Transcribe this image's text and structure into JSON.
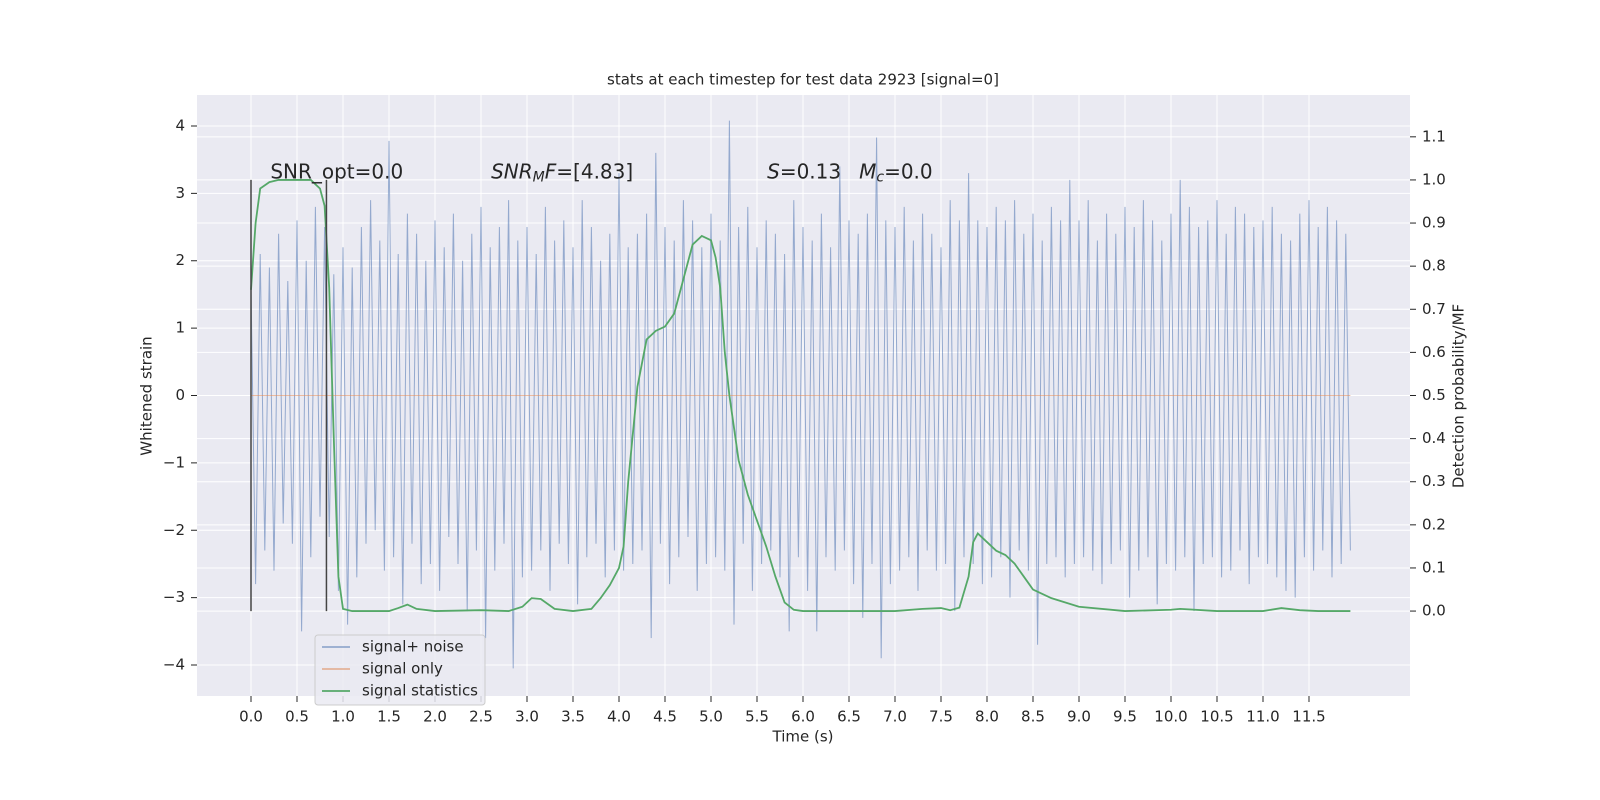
{
  "chart_data": {
    "type": "line",
    "title": "stats at each timestep for test data 2923 [signal=0]",
    "x_label": "Time (s)",
    "y_label": "Whitened strain",
    "y2_label": "Detection probability/MF",
    "xlim": [
      -0.587,
      12.598
    ],
    "ylim": [
      -4.46,
      4.46
    ],
    "y2lim": [
      -0.197,
      1.197
    ],
    "grid": true,
    "xticks": [
      {
        "value": 0,
        "label": "0.0"
      },
      0.5,
      {
        "value": 1,
        "label": "1.0"
      },
      1.5,
      {
        "value": 2,
        "label": "2.0"
      },
      2.5,
      {
        "value": 3,
        "label": "3.0"
      },
      3.5,
      {
        "value": 4,
        "label": "4.0"
      },
      4.5,
      {
        "value": 5,
        "label": "5.0"
      },
      5.5,
      {
        "value": 6,
        "label": "6.0"
      },
      6.5,
      {
        "value": 7,
        "label": "7.0"
      },
      7.5,
      {
        "value": 8,
        "label": "8.0"
      },
      8.5,
      {
        "value": 9,
        "label": "9.0"
      },
      9.5,
      {
        "value": 10,
        "label": "10.0"
      },
      10.5,
      {
        "value": 11,
        "label": "11.0"
      },
      11.5
    ],
    "yticks": [
      {
        "value": -4,
        "label": "−4"
      },
      {
        "value": -3,
        "label": "−3"
      },
      {
        "value": -2,
        "label": "−2"
      },
      {
        "value": -1,
        "label": "−1"
      },
      0,
      1,
      2,
      3,
      4
    ],
    "y2ticks": [
      {
        "value": 0,
        "label": "0.0"
      },
      0.1,
      0.2,
      0.3,
      0.4,
      0.5,
      0.6,
      0.7,
      0.8,
      0.9,
      {
        "value": 1,
        "label": "1.0"
      },
      1.1
    ],
    "legend": "lower left",
    "series": [
      {
        "name": "signal+ noise",
        "color": "#4c72b0",
        "alpha": 0.55,
        "x": [
          0,
          0.05,
          0.1,
          0.15,
          0.2,
          0.25,
          0.3,
          0.35,
          0.4,
          0.45,
          0.5,
          0.55,
          0.6,
          0.65,
          0.7,
          0.75,
          0.8,
          0.85,
          0.9,
          0.95,
          1,
          1.05,
          1.1,
          1.15,
          1.2,
          1.25,
          1.3,
          1.35,
          1.4,
          1.45,
          1.5,
          1.55,
          1.6,
          1.65,
          1.7,
          1.75,
          1.8,
          1.85,
          1.9,
          1.95,
          2,
          2.05,
          2.1,
          2.15,
          2.2,
          2.25,
          2.3,
          2.35,
          2.4,
          2.45,
          2.5,
          2.55,
          2.6,
          2.65,
          2.7,
          2.75,
          2.8,
          2.85,
          2.9,
          2.95,
          3,
          3.05,
          3.1,
          3.15,
          3.2,
          3.25,
          3.3,
          3.35,
          3.4,
          3.45,
          3.5,
          3.55,
          3.6,
          3.65,
          3.7,
          3.75,
          3.8,
          3.85,
          3.9,
          3.95,
          4,
          4.05,
          4.1,
          4.15,
          4.2,
          4.25,
          4.3,
          4.35,
          4.4,
          4.45,
          4.5,
          4.55,
          4.6,
          4.65,
          4.7,
          4.75,
          4.8,
          4.85,
          4.9,
          4.95,
          5,
          5.05,
          5.1,
          5.15,
          5.2,
          5.25,
          5.3,
          5.35,
          5.4,
          5.45,
          5.5,
          5.55,
          5.6,
          5.65,
          5.7,
          5.75,
          5.8,
          5.85,
          5.9,
          5.95,
          6,
          6.05,
          6.1,
          6.15,
          6.2,
          6.25,
          6.3,
          6.35,
          6.4,
          6.45,
          6.5,
          6.55,
          6.6,
          6.65,
          6.7,
          6.75,
          6.8,
          6.85,
          6.9,
          6.95,
          7,
          7.05,
          7.1,
          7.15,
          7.2,
          7.25,
          7.3,
          7.35,
          7.4,
          7.45,
          7.5,
          7.55,
          7.6,
          7.65,
          7.7,
          7.75,
          7.8,
          7.85,
          7.9,
          7.95,
          8,
          8.05,
          8.1,
          8.15,
          8.2,
          8.25,
          8.3,
          8.35,
          8.4,
          8.45,
          8.5,
          8.55,
          8.6,
          8.65,
          8.7,
          8.75,
          8.8,
          8.85,
          8.9,
          8.95,
          9,
          9.05,
          9.1,
          9.15,
          9.2,
          9.25,
          9.3,
          9.35,
          9.4,
          9.45,
          9.5,
          9.55,
          9.6,
          9.65,
          9.7,
          9.75,
          9.8,
          9.85,
          9.9,
          9.95,
          10,
          10.05,
          10.1,
          10.15,
          10.2,
          10.25,
          10.3,
          10.35,
          10.4,
          10.45,
          10.5,
          10.55,
          10.6,
          10.65,
          10.7,
          10.75,
          10.8,
          10.85,
          10.9,
          10.95,
          11,
          11.05,
          11.1,
          11.15,
          11.2,
          11.25,
          11.3,
          11.35,
          11.4,
          11.45,
          11.5,
          11.55,
          11.6,
          11.65,
          11.7,
          11.75,
          11.8,
          11.85,
          11.9,
          11.95
        ],
        "values": [
          1.6,
          -2.8,
          2.1,
          -2.3,
          1.9,
          -2.6,
          2.4,
          -1.9,
          1.7,
          -2.2,
          2.6,
          -3.5,
          2.0,
          -2.4,
          2.8,
          -1.8,
          2.5,
          -2.1,
          1.8,
          -2.9,
          2.2,
          -3.4,
          1.9,
          -2.7,
          2.5,
          -2.2,
          2.9,
          -2.0,
          2.3,
          -2.6,
          3.78,
          -2.4,
          2.1,
          -3.1,
          2.7,
          -2.2,
          2.4,
          -2.8,
          2.0,
          -2.5,
          2.6,
          -2.9,
          2.2,
          -2.1,
          2.7,
          -2.5,
          2.0,
          -3.2,
          2.4,
          -2.3,
          2.8,
          -3.6,
          2.2,
          -2.6,
          2.5,
          -2.2,
          2.9,
          -4.05,
          2.3,
          -2.7,
          2.5,
          -2.6,
          2.1,
          -2.3,
          2.8,
          -2.9,
          2.3,
          -2.2,
          2.6,
          -2.5,
          2.2,
          -3.1,
          2.9,
          -2.4,
          2.5,
          -2.2,
          2.0,
          -2.7,
          2.4,
          -2.3,
          3.3,
          -2.6,
          2.2,
          -2.5,
          2.4,
          -2.3,
          2.7,
          -3.6,
          3.6,
          -2.2,
          2.5,
          -2.8,
          2.3,
          -2.4,
          2.9,
          -2.1,
          2.6,
          -2.9,
          2.2,
          -2.5,
          2.7,
          -2.4,
          2.3,
          -2.6,
          4.08,
          -3.4,
          2.5,
          -2.2,
          2.8,
          -2.9,
          2.2,
          -2.5,
          2.6,
          -2.3,
          2.4,
          -2.7,
          2.1,
          -3.5,
          2.9,
          -2.4,
          2.5,
          -2.9,
          2.3,
          -3.5,
          2.7,
          -2.4,
          2.2,
          -2.6,
          3.4,
          -2.3,
          2.6,
          -2.8,
          2.4,
          -3.3,
          2.7,
          -2.5,
          3.83,
          -3.9,
          2.6,
          -2.8,
          2.5,
          -2.6,
          2.8,
          -2.4,
          2.3,
          -2.9,
          2.7,
          -2.3,
          2.4,
          -2.6,
          2.2,
          -2.5,
          2.9,
          -3.2,
          2.6,
          -2.4,
          3.3,
          -2.5,
          2.6,
          -2.8,
          2.5,
          -2.7,
          2.8,
          -2.4,
          2.6,
          -3.0,
          2.9,
          -2.3,
          2.4,
          -2.6,
          2.7,
          -3.7,
          2.3,
          -2.5,
          2.8,
          -2.4,
          2.6,
          -2.7,
          3.2,
          -2.5,
          2.6,
          -2.4,
          2.9,
          -2.6,
          2.3,
          -2.8,
          2.7,
          -2.5,
          2.4,
          -2.3,
          2.8,
          -3.0,
          2.5,
          -2.6,
          2.9,
          -2.4,
          2.6,
          -3.1,
          2.3,
          -2.5,
          2.7,
          -2.6,
          3.2,
          -2.4,
          2.8,
          -3.2,
          2.5,
          -2.5,
          2.6,
          -2.4,
          2.9,
          -2.7,
          2.4,
          -2.6,
          2.8,
          -2.3,
          2.7,
          -2.8,
          2.5,
          -2.4,
          2.6,
          -2.5,
          2.8,
          -2.7,
          2.4,
          -2.9,
          2.3,
          -3.0,
          2.7,
          -2.4,
          2.9,
          -2.6,
          2.5,
          -2.3,
          2.8,
          -2.7,
          2.6,
          -2.5,
          2.4,
          -2.3
        ]
      },
      {
        "name": "signal only",
        "color": "#dd8452",
        "alpha": 0.55,
        "x": [
          0,
          11.95
        ],
        "values": [
          0,
          0
        ]
      },
      {
        "name": "signal statistics",
        "color": "#55a868",
        "alpha": 1,
        "axis": "y2",
        "x": [
          0,
          0.05,
          0.1,
          0.2,
          0.3,
          0.5,
          0.65,
          0.75,
          0.8,
          0.85,
          0.9,
          0.95,
          1.0,
          1.1,
          1.5,
          1.6,
          1.7,
          1.8,
          2.0,
          2.5,
          2.8,
          2.95,
          3.05,
          3.15,
          3.3,
          3.5,
          3.7,
          3.8,
          3.9,
          4.0,
          4.05,
          4.1,
          4.2,
          4.3,
          4.4,
          4.5,
          4.6,
          4.7,
          4.8,
          4.9,
          5.0,
          5.05,
          5.1,
          5.15,
          5.2,
          5.3,
          5.4,
          5.5,
          5.6,
          5.7,
          5.8,
          5.9,
          6.0,
          7.0,
          7.3,
          7.5,
          7.6,
          7.7,
          7.8,
          7.85,
          7.9,
          8.0,
          8.1,
          8.2,
          8.3,
          8.4,
          8.5,
          8.7,
          9.0,
          9.5,
          10.0,
          10.1,
          10.5,
          11.0,
          11.2,
          11.4,
          11.6,
          11.95
        ],
        "values": [
          0.745,
          0.9,
          0.98,
          0.995,
          1.0,
          1.0,
          1.0,
          0.98,
          0.94,
          0.75,
          0.4,
          0.08,
          0.005,
          0.0,
          0.0,
          0.007,
          0.015,
          0.005,
          0.0,
          0.002,
          0.0,
          0.01,
          0.03,
          0.028,
          0.005,
          0.0,
          0.005,
          0.03,
          0.06,
          0.1,
          0.15,
          0.3,
          0.52,
          0.63,
          0.65,
          0.66,
          0.69,
          0.77,
          0.85,
          0.87,
          0.86,
          0.82,
          0.75,
          0.6,
          0.5,
          0.35,
          0.27,
          0.21,
          0.15,
          0.08,
          0.02,
          0.003,
          0.0,
          0.0,
          0.005,
          0.007,
          0.002,
          0.008,
          0.08,
          0.16,
          0.18,
          0.16,
          0.14,
          0.13,
          0.11,
          0.08,
          0.05,
          0.03,
          0.01,
          0.0,
          0.003,
          0.005,
          0.0,
          0.0,
          0.007,
          0.002,
          0.0,
          0.0
        ]
      }
    ],
    "vlines": {
      "color": "#444444",
      "lines": [
        {
          "x": 0,
          "ymin": -3.2,
          "ymax": 3.2
        },
        {
          "x": 0.82,
          "ymin": -3.2,
          "ymax": 3.2
        }
      ]
    },
    "annotations": [
      {
        "x": 0.21,
        "y": 3.31,
        "parts": [
          {
            "text": "SNR_opt=0.0"
          }
        ]
      },
      {
        "x": 2.61,
        "y": 3.31,
        "parts": [
          {
            "text": "SNR",
            "style": "italic"
          },
          {
            "text": "M",
            "style": "italic-sub"
          },
          {
            "text": "F",
            "style": "italic"
          },
          {
            "text": "=[4.83]"
          }
        ]
      },
      {
        "x": 5.61,
        "y": 3.31,
        "parts": [
          {
            "text": "S",
            "style": "italic"
          },
          {
            "text": "=0.13"
          }
        ]
      },
      {
        "x": 6.61,
        "y": 3.31,
        "parts": [
          {
            "text": "M",
            "style": "italic"
          },
          {
            "text": "c",
            "style": "italic-sub"
          },
          {
            "text": "=0.0"
          }
        ]
      }
    ]
  }
}
